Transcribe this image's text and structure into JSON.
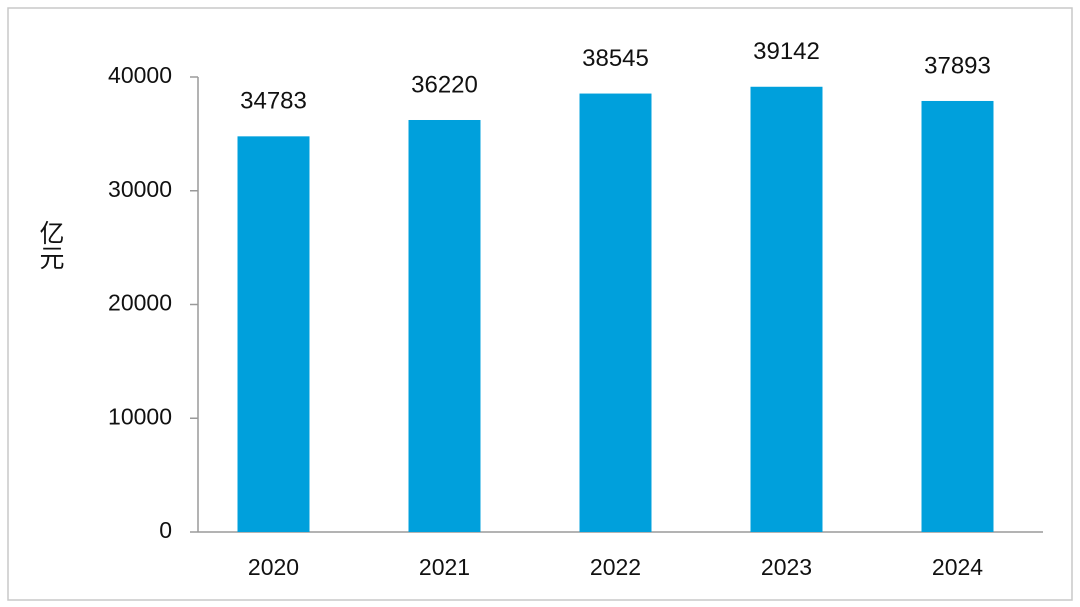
{
  "chart_data": {
    "type": "bar",
    "y_label": "亿元",
    "categories": [
      "2020",
      "2021",
      "2022",
      "2023",
      "2024"
    ],
    "values": [
      34783,
      36220,
      38545,
      39142,
      37893
    ],
    "color": "#00a0dc",
    "ylim": [
      0,
      40000
    ],
    "yticks": [
      0,
      10000,
      20000,
      30000,
      40000
    ],
    "grid": false
  }
}
